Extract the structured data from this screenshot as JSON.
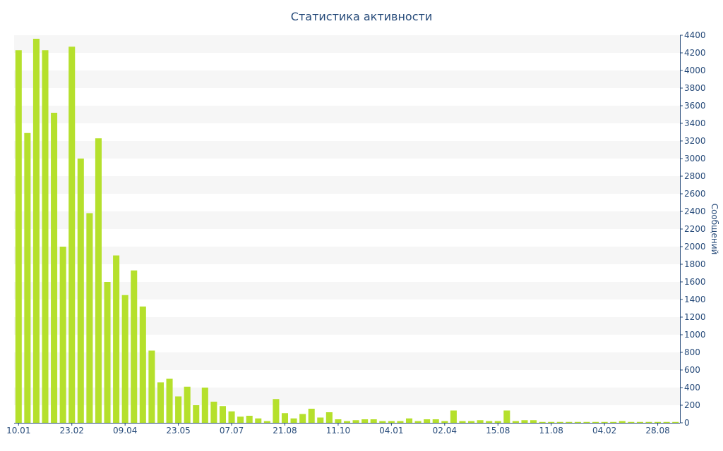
{
  "chart_data": {
    "type": "bar",
    "title": "Статистика активности",
    "xlabel": "",
    "ylabel": "Сообщений",
    "ylim": [
      0,
      4400
    ],
    "y_tick_step": 200,
    "y_axis_side": "right",
    "grid": "horizontal alternating bands",
    "legend": "none",
    "x_tick_labels": [
      {
        "label": "10.01",
        "index": 0
      },
      {
        "label": "23.02",
        "index": 6
      },
      {
        "label": "09.04",
        "index": 12
      },
      {
        "label": "23.05",
        "index": 18
      },
      {
        "label": "07.07",
        "index": 24
      },
      {
        "label": "21.08",
        "index": 30
      },
      {
        "label": "11.10",
        "index": 36
      },
      {
        "label": "04.01",
        "index": 42
      },
      {
        "label": "02.04",
        "index": 48
      },
      {
        "label": "15.08",
        "index": 54
      },
      {
        "label": "11.08",
        "index": 60
      },
      {
        "label": "04.02",
        "index": 66
      },
      {
        "label": "28.08",
        "index": 72
      }
    ],
    "values": [
      4230,
      3290,
      4360,
      4230,
      3520,
      2000,
      4270,
      3000,
      2380,
      3230,
      1600,
      1900,
      1450,
      1730,
      1320,
      820,
      460,
      500,
      300,
      410,
      200,
      400,
      240,
      190,
      130,
      70,
      80,
      50,
      20,
      270,
      110,
      50,
      100,
      160,
      60,
      120,
      40,
      20,
      30,
      40,
      40,
      20,
      20,
      20,
      50,
      20,
      40,
      40,
      20,
      140,
      20,
      20,
      30,
      20,
      20,
      140,
      20,
      30,
      30,
      10,
      10,
      10,
      10,
      10,
      10,
      10,
      10,
      10,
      20,
      10,
      10,
      10,
      10,
      10,
      10
    ],
    "colors": {
      "bar": "#b5e02c",
      "band": "#f6f6f6",
      "axis": "#274b7a",
      "text": "#274b7a"
    }
  }
}
